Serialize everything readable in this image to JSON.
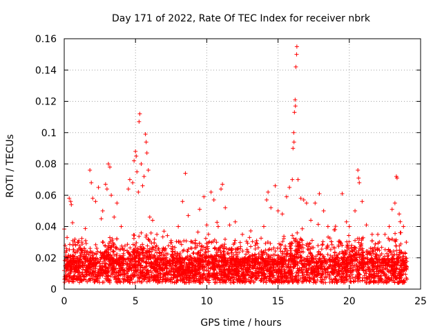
{
  "chart_data": {
    "type": "scatter",
    "title": "Day 171 of 2022, Rate Of TEC Index for receiver nbrk",
    "xlabel": "GPS time / hours",
    "ylabel": "ROTI / TECUs",
    "xlim": [
      0,
      25
    ],
    "ylim": [
      0,
      0.16
    ],
    "xticks": [
      "0",
      "5",
      "10",
      "15",
      "20",
      "25"
    ],
    "yticks": [
      "0",
      "0.02",
      "0.04",
      "0.06",
      "0.08",
      "0.1",
      "0.12",
      "0.14",
      "0.16"
    ],
    "grid": true,
    "marker": "+",
    "color": "#ff0000",
    "description_of_bulk": "dense cloud of points between ~0.003 and ~0.035 TECU across 0–24 h, with spikes",
    "series": [
      {
        "points": [
          [
            0.1,
            0.021
          ],
          [
            0.2,
            0.033
          ],
          [
            0.35,
            0.058
          ],
          [
            0.45,
            0.056
          ],
          [
            0.5,
            0.054
          ],
          [
            0.6,
            0.031
          ],
          [
            0.8,
            0.028
          ],
          [
            1.0,
            0.03
          ],
          [
            1.5,
            0.031
          ],
          [
            1.8,
            0.076
          ],
          [
            1.9,
            0.068
          ],
          [
            2.0,
            0.058
          ],
          [
            2.2,
            0.056
          ],
          [
            2.4,
            0.065
          ],
          [
            2.6,
            0.045
          ],
          [
            2.7,
            0.05
          ],
          [
            2.9,
            0.067
          ],
          [
            3.0,
            0.064
          ],
          [
            3.1,
            0.08
          ],
          [
            3.2,
            0.078
          ],
          [
            3.3,
            0.06
          ],
          [
            3.5,
            0.046
          ],
          [
            3.7,
            0.055
          ],
          [
            4.0,
            0.04
          ],
          [
            4.5,
            0.064
          ],
          [
            4.6,
            0.07
          ],
          [
            4.8,
            0.068
          ],
          [
            4.9,
            0.082
          ],
          [
            5.0,
            0.088
          ],
          [
            5.05,
            0.085
          ],
          [
            5.1,
            0.075
          ],
          [
            5.2,
            0.062
          ],
          [
            5.25,
            0.107
          ],
          [
            5.3,
            0.112
          ],
          [
            5.4,
            0.08
          ],
          [
            5.5,
            0.066
          ],
          [
            5.6,
            0.072
          ],
          [
            5.7,
            0.099
          ],
          [
            5.75,
            0.094
          ],
          [
            5.8,
            0.087
          ],
          [
            5.9,
            0.076
          ],
          [
            6.0,
            0.046
          ],
          [
            6.2,
            0.044
          ],
          [
            6.5,
            0.035
          ],
          [
            7.0,
            0.037
          ],
          [
            7.5,
            0.031
          ],
          [
            8.0,
            0.04
          ],
          [
            8.3,
            0.056
          ],
          [
            8.5,
            0.074
          ],
          [
            8.7,
            0.047
          ],
          [
            9.0,
            0.03
          ],
          [
            9.5,
            0.051
          ],
          [
            9.8,
            0.059
          ],
          [
            10.0,
            0.041
          ],
          [
            10.3,
            0.062
          ],
          [
            10.5,
            0.057
          ],
          [
            10.8,
            0.04
          ],
          [
            11.0,
            0.064
          ],
          [
            11.1,
            0.067
          ],
          [
            11.3,
            0.052
          ],
          [
            11.6,
            0.041
          ],
          [
            12.0,
            0.043
          ],
          [
            12.5,
            0.035
          ],
          [
            13.0,
            0.033
          ],
          [
            13.5,
            0.031
          ],
          [
            14.0,
            0.04
          ],
          [
            14.2,
            0.057
          ],
          [
            14.3,
            0.062
          ],
          [
            14.5,
            0.052
          ],
          [
            14.8,
            0.066
          ],
          [
            15.0,
            0.05
          ],
          [
            15.3,
            0.048
          ],
          [
            15.6,
            0.059
          ],
          [
            15.8,
            0.065
          ],
          [
            16.0,
            0.07
          ],
          [
            16.05,
            0.09
          ],
          [
            16.1,
            0.1
          ],
          [
            16.12,
            0.094
          ],
          [
            16.15,
            0.113
          ],
          [
            16.2,
            0.121
          ],
          [
            16.22,
            0.117
          ],
          [
            16.25,
            0.142
          ],
          [
            16.3,
            0.15
          ],
          [
            16.32,
            0.155
          ],
          [
            16.4,
            0.07
          ],
          [
            16.6,
            0.058
          ],
          [
            16.8,
            0.057
          ],
          [
            17.0,
            0.055
          ],
          [
            17.3,
            0.044
          ],
          [
            17.6,
            0.055
          ],
          [
            17.9,
            0.061
          ],
          [
            18.2,
            0.05
          ],
          [
            18.5,
            0.04
          ],
          [
            19.0,
            0.038
          ],
          [
            19.5,
            0.061
          ],
          [
            19.8,
            0.043
          ],
          [
            20.0,
            0.04
          ],
          [
            20.4,
            0.05
          ],
          [
            20.6,
            0.076
          ],
          [
            20.65,
            0.071
          ],
          [
            20.7,
            0.068
          ],
          [
            20.9,
            0.056
          ],
          [
            21.2,
            0.041
          ],
          [
            21.6,
            0.035
          ],
          [
            22.0,
            0.035
          ],
          [
            22.5,
            0.035
          ],
          [
            22.8,
            0.04
          ],
          [
            23.0,
            0.051
          ],
          [
            23.2,
            0.055
          ],
          [
            23.3,
            0.072
          ],
          [
            23.35,
            0.071
          ],
          [
            23.5,
            0.048
          ],
          [
            23.8,
            0.04
          ],
          [
            24.0,
            0.03
          ]
        ]
      }
    ]
  }
}
